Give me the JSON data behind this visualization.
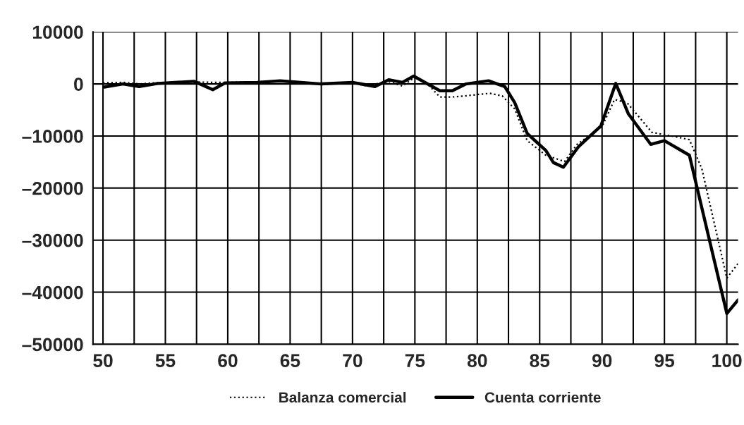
{
  "chart_data": {
    "type": "line",
    "xlim": [
      49.2,
      100.9
    ],
    "ylim": [
      -50000,
      10000
    ],
    "xticks": [
      50,
      {
        "value": 52.5,
        "label": null
      },
      55,
      {
        "value": 57.5,
        "label": null
      },
      60,
      {
        "value": 62.5,
        "label": null
      },
      65,
      {
        "value": 67.5,
        "label": null
      },
      70,
      {
        "value": 72.5,
        "label": null
      },
      75,
      {
        "value": 77.5,
        "label": null
      },
      80,
      {
        "value": 82.5,
        "label": null
      },
      85,
      {
        "value": 87.5,
        "label": null
      },
      90,
      {
        "value": 92.5,
        "label": null
      },
      95,
      {
        "value": 97.5,
        "label": null
      },
      100
    ],
    "yticks": [
      10000,
      0,
      {
        "value": -10000,
        "label": "–10000"
      },
      {
        "value": -20000,
        "label": "–20000"
      },
      {
        "value": -30000,
        "label": "–30000"
      },
      {
        "value": -40000,
        "label": "–40000"
      },
      {
        "value": -50000,
        "label": "–50000"
      }
    ],
    "grid": true,
    "legend": "bottom",
    "series": [
      {
        "name": "Balanza comercial",
        "color": "#000000",
        "line_style": "dotted",
        "x": [
          50,
          51.6,
          53,
          54,
          57,
          58.8,
          60,
          64,
          68,
          70,
          71,
          73,
          74,
          75,
          76,
          77,
          78,
          79,
          81,
          82,
          83,
          84,
          85.5,
          87,
          88,
          90,
          91,
          92,
          94,
          96,
          97,
          98,
          100,
          100.9
        ],
        "values": [
          200,
          300,
          0,
          200,
          400,
          300,
          300,
          500,
          0,
          200,
          -300,
          400,
          -400,
          1300,
          0,
          -2500,
          -2500,
          -2300,
          -1800,
          -2300,
          -4800,
          -10900,
          -13700,
          -14900,
          -11600,
          -8200,
          -3000,
          -3600,
          -9300,
          -10200,
          -10700,
          -16300,
          -37300,
          -34500
        ]
      },
      {
        "name": "Cuenta corriente",
        "color": "#000000",
        "line_style": "solid",
        "x": [
          50.1,
          51.6,
          52.9,
          54.4,
          57.3,
          58.8,
          59.8,
          62.4,
          64.2,
          67.5,
          70,
          71.8,
          72.9,
          74,
          74.9,
          77,
          78,
          79.1,
          80.9,
          82.2,
          83,
          84,
          85.5,
          86.1,
          86.9,
          88.1,
          89.9,
          91.1,
          92.1,
          93.9,
          95,
          97,
          100,
          100.9
        ],
        "values": [
          -600,
          0,
          -500,
          100,
          500,
          -1100,
          200,
          300,
          600,
          0,
          300,
          -500,
          800,
          300,
          1500,
          -1300,
          -1300,
          0,
          600,
          -500,
          -3600,
          -9500,
          -12800,
          -15100,
          -16000,
          -12100,
          -8100,
          100,
          -5700,
          -11600,
          -10900,
          -13700,
          -44100,
          -41500
        ]
      }
    ]
  }
}
